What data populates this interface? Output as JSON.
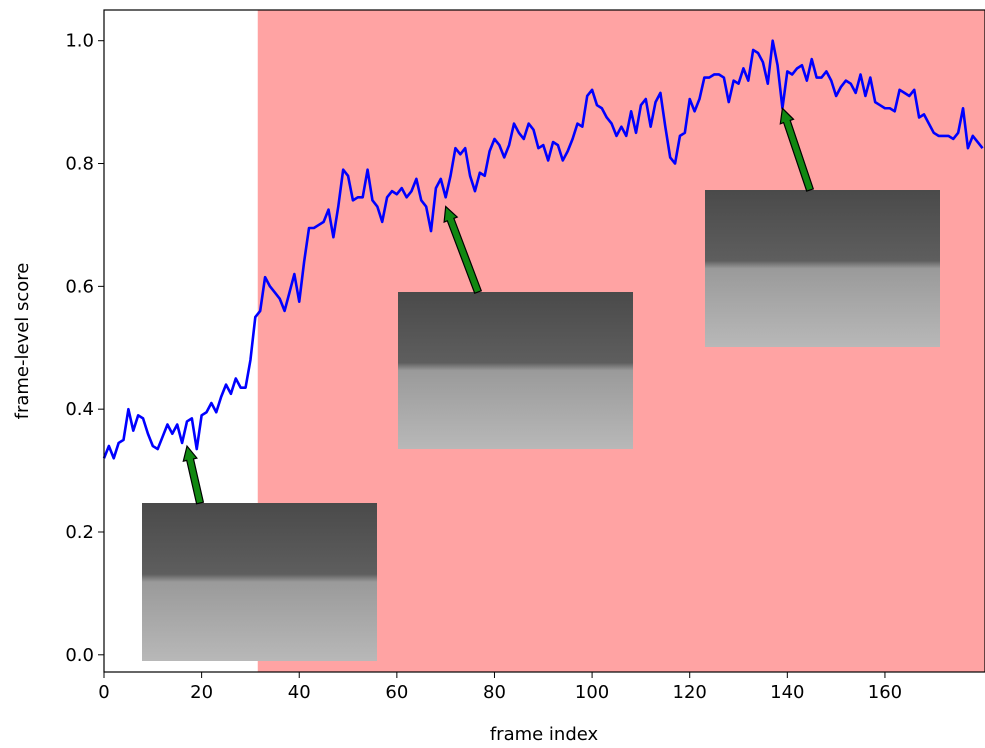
{
  "chart_data": {
    "type": "line",
    "xlabel": "frame index",
    "ylabel": "frame-level score",
    "xlim": [
      0,
      180.5
    ],
    "ylim": [
      -0.028,
      1.05
    ],
    "xticks": [
      0,
      20,
      40,
      60,
      80,
      100,
      120,
      140,
      160
    ],
    "yticks": [
      {
        "value": 0,
        "label": "0.0"
      },
      0.2,
      0.4,
      0.6,
      0.8,
      {
        "value": 1,
        "label": "1.0"
      }
    ],
    "span": {
      "x": [
        31.5,
        180.5
      ],
      "color": "#ffa3a3"
    },
    "arrow_color": "#118811",
    "arrows": [
      {
        "x": 17,
        "y": 0.34
      },
      {
        "x": 70,
        "y": 0.73
      },
      {
        "x": 139,
        "y": 0.89
      }
    ],
    "series": [
      {
        "color": "#0000ff",
        "x": [
          0,
          1,
          2,
          3,
          4,
          5,
          6,
          7,
          8,
          9,
          10,
          11,
          12,
          13,
          14,
          15,
          16,
          17,
          18,
          19,
          20,
          21,
          22,
          23,
          24,
          25,
          26,
          27,
          28,
          29,
          30,
          31,
          32,
          33,
          34,
          35,
          36,
          37,
          38,
          39,
          40,
          41,
          42,
          43,
          44,
          45,
          46,
          47,
          48,
          49,
          50,
          51,
          52,
          53,
          54,
          55,
          56,
          57,
          58,
          59,
          60,
          61,
          62,
          63,
          64,
          65,
          66,
          67,
          68,
          69,
          70,
          71,
          72,
          73,
          74,
          75,
          76,
          77,
          78,
          79,
          80,
          81,
          82,
          83,
          84,
          85,
          86,
          87,
          88,
          89,
          90,
          91,
          92,
          93,
          94,
          95,
          96,
          97,
          98,
          99,
          100,
          101,
          102,
          103,
          104,
          105,
          106,
          107,
          108,
          109,
          110,
          111,
          112,
          113,
          114,
          115,
          116,
          117,
          118,
          119,
          120,
          121,
          122,
          123,
          124,
          125,
          126,
          127,
          128,
          129,
          130,
          131,
          132,
          133,
          134,
          135,
          136,
          137,
          138,
          139,
          140,
          141,
          142,
          143,
          144,
          145,
          146,
          147,
          148,
          149,
          150,
          151,
          152,
          153,
          154,
          155,
          156,
          157,
          158,
          159,
          160,
          161,
          162,
          163,
          164,
          165,
          166,
          167,
          168,
          169,
          170,
          171,
          172,
          173,
          174,
          175,
          176,
          177,
          178,
          179,
          180
        ],
        "values": [
          0.32,
          0.34,
          0.32,
          0.345,
          0.35,
          0.4,
          0.365,
          0.39,
          0.385,
          0.36,
          0.34,
          0.335,
          0.355,
          0.375,
          0.36,
          0.375,
          0.345,
          0.38,
          0.385,
          0.335,
          0.39,
          0.395,
          0.41,
          0.395,
          0.42,
          0.44,
          0.425,
          0.45,
          0.435,
          0.435,
          0.48,
          0.55,
          0.56,
          0.615,
          0.6,
          0.59,
          0.58,
          0.56,
          0.59,
          0.62,
          0.575,
          0.64,
          0.695,
          0.695,
          0.7,
          0.705,
          0.725,
          0.68,
          0.73,
          0.79,
          0.78,
          0.74,
          0.745,
          0.745,
          0.79,
          0.74,
          0.73,
          0.705,
          0.745,
          0.755,
          0.75,
          0.76,
          0.745,
          0.755,
          0.775,
          0.74,
          0.73,
          0.69,
          0.76,
          0.775,
          0.745,
          0.78,
          0.825,
          0.815,
          0.825,
          0.78,
          0.755,
          0.785,
          0.78,
          0.82,
          0.84,
          0.83,
          0.81,
          0.83,
          0.865,
          0.85,
          0.84,
          0.865,
          0.855,
          0.825,
          0.83,
          0.805,
          0.835,
          0.83,
          0.805,
          0.82,
          0.84,
          0.865,
          0.86,
          0.91,
          0.92,
          0.895,
          0.89,
          0.875,
          0.865,
          0.845,
          0.86,
          0.845,
          0.885,
          0.85,
          0.895,
          0.905,
          0.86,
          0.9,
          0.915,
          0.86,
          0.81,
          0.8,
          0.845,
          0.85,
          0.905,
          0.885,
          0.905,
          0.94,
          0.94,
          0.945,
          0.945,
          0.94,
          0.9,
          0.935,
          0.93,
          0.955,
          0.935,
          0.985,
          0.98,
          0.965,
          0.93,
          1.0,
          0.96,
          0.89,
          0.95,
          0.945,
          0.955,
          0.96,
          0.935,
          0.97,
          0.94,
          0.94,
          0.95,
          0.935,
          0.91,
          0.925,
          0.935,
          0.93,
          0.915,
          0.945,
          0.91,
          0.94,
          0.9,
          0.895,
          0.89,
          0.89,
          0.885,
          0.92,
          0.915,
          0.91,
          0.92,
          0.875,
          0.88,
          0.865,
          0.85,
          0.845,
          0.845,
          0.845,
          0.84,
          0.85,
          0.89,
          0.825,
          0.845,
          0.835,
          0.825
        ]
      }
    ]
  }
}
